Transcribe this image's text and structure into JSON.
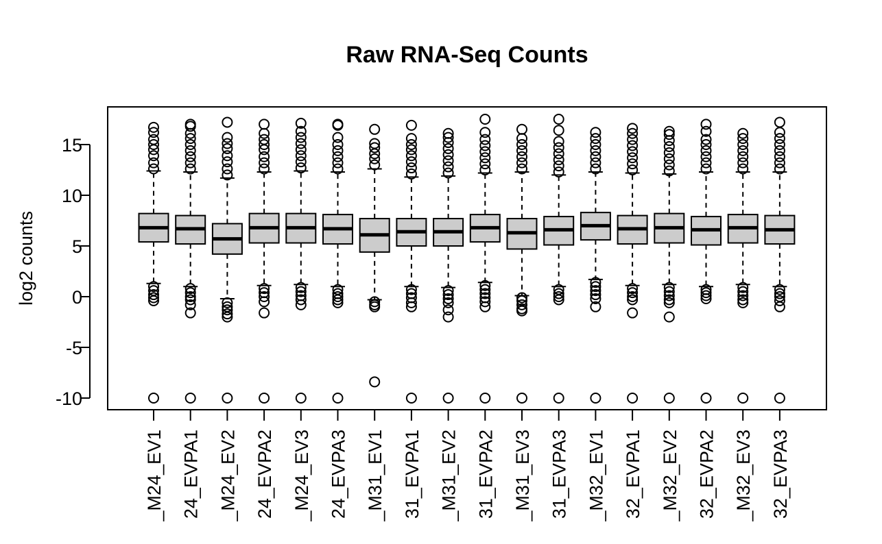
{
  "chart_data": {
    "type": "boxplot",
    "title": "Raw RNA-Seq Counts",
    "xlabel": "",
    "ylabel": "log2 counts",
    "ylim": [
      -11,
      18.5
    ],
    "yticks": [
      -10,
      -5,
      0,
      5,
      10,
      15
    ],
    "ytick_labels": [
      "-10",
      "-5",
      "0",
      "5",
      "10",
      "15"
    ],
    "grid": false,
    "legend": "none",
    "colors": {
      "box_fill": "#cccccc",
      "stroke": "#000000",
      "background": "#ffffff"
    },
    "categories": [
      "_M24_EV1",
      "24_EVPA1",
      "_M24_EV2",
      "24_EVPA2",
      "_M24_EV3",
      "24_EVPA3",
      "_M31_EV1",
      "31_EVPA1",
      "_M31_EV2",
      "31_EVPA2",
      "_M31_EV3",
      "31_EVPA3",
      "_M32_EV1",
      "32_EVPA1",
      "_M32_EV2",
      "32_EVPA2",
      "_M32_EV3",
      "32_EVPA3"
    ],
    "boxes": [
      {
        "q1": 5.4,
        "median": 6.8,
        "q3": 8.2,
        "whisker_low": 1.3,
        "whisker_high": 12.4,
        "outliers_high": [
          12.6,
          13.2,
          13.9,
          14.5,
          15.0,
          15.5,
          16.2,
          16.7
        ],
        "outliers_low": [
          1.0,
          0.6,
          0.2,
          -0.1,
          -0.4,
          -10
        ]
      },
      {
        "q1": 5.2,
        "median": 6.7,
        "q3": 8.0,
        "whisker_low": 1.0,
        "whisker_high": 12.3,
        "outliers_high": [
          12.6,
          13.2,
          13.8,
          14.4,
          15.0,
          15.6,
          16.1,
          16.8,
          17.0
        ],
        "outliers_low": [
          0.8,
          0.4,
          0.0,
          -0.3,
          -0.8,
          -1.6,
          -10
        ]
      },
      {
        "q1": 4.2,
        "median": 5.7,
        "q3": 7.2,
        "whisker_low": -0.2,
        "whisker_high": 11.7,
        "outliers_high": [
          12.0,
          12.6,
          13.3,
          13.9,
          14.6,
          15.1,
          15.7,
          17.2
        ],
        "outliers_low": [
          -0.6,
          -1.0,
          -1.3,
          -1.7,
          -2.0,
          -10
        ]
      },
      {
        "q1": 5.3,
        "median": 6.8,
        "q3": 8.2,
        "whisker_low": 1.1,
        "whisker_high": 12.3,
        "outliers_high": [
          12.6,
          13.2,
          13.8,
          14.5,
          15.0,
          15.5,
          16.1,
          17.0
        ],
        "outliers_low": [
          0.8,
          0.4,
          0.0,
          -0.5,
          -1.6,
          -10
        ]
      },
      {
        "q1": 5.3,
        "median": 6.8,
        "q3": 8.2,
        "whisker_low": 1.2,
        "whisker_high": 12.4,
        "outliers_high": [
          12.7,
          13.3,
          13.9,
          14.5,
          15.1,
          15.7,
          16.3,
          17.1
        ],
        "outliers_low": [
          0.9,
          0.5,
          0.1,
          -0.3,
          -0.8,
          -10
        ]
      },
      {
        "q1": 5.2,
        "median": 6.7,
        "q3": 8.1,
        "whisker_low": 1.0,
        "whisker_high": 12.3,
        "outliers_high": [
          12.6,
          13.2,
          13.8,
          14.4,
          15.0,
          15.7,
          16.9,
          17.0
        ],
        "outliers_low": [
          0.7,
          0.3,
          0.0,
          -0.3,
          -0.6,
          -10
        ]
      },
      {
        "q1": 4.4,
        "median": 6.1,
        "q3": 7.7,
        "whisker_low": -0.3,
        "whisker_high": 12.6,
        "outliers_high": [
          13.0,
          13.6,
          14.1,
          14.7,
          15.1,
          16.5
        ],
        "outliers_low": [
          -0.5,
          -0.8,
          -1.0,
          -8.4
        ]
      },
      {
        "q1": 5.0,
        "median": 6.4,
        "q3": 7.7,
        "whisker_low": 1.0,
        "whisker_high": 11.8,
        "outliers_high": [
          12.1,
          12.7,
          13.3,
          13.9,
          14.5,
          15.0,
          15.6,
          16.9
        ],
        "outliers_low": [
          0.7,
          0.3,
          -0.1,
          -0.6,
          -1.0,
          -10
        ]
      },
      {
        "q1": 5.0,
        "median": 6.4,
        "q3": 7.7,
        "whisker_low": 0.9,
        "whisker_high": 11.9,
        "outliers_high": [
          12.2,
          12.8,
          13.4,
          14.0,
          14.6,
          15.2,
          15.7,
          16.1
        ],
        "outliers_low": [
          0.6,
          0.2,
          -0.2,
          -0.6,
          -1.3,
          -2.0,
          -10
        ]
      },
      {
        "q1": 5.4,
        "median": 6.8,
        "q3": 8.1,
        "whisker_low": 1.4,
        "whisker_high": 12.2,
        "outliers_high": [
          12.5,
          13.1,
          13.7,
          14.3,
          14.9,
          15.5,
          16.2,
          17.5
        ],
        "outliers_low": [
          1.1,
          0.7,
          0.3,
          -0.1,
          -0.5,
          -1.0,
          -10
        ]
      },
      {
        "q1": 4.7,
        "median": 6.3,
        "q3": 7.7,
        "whisker_low": 0.1,
        "whisker_high": 12.3,
        "outliers_high": [
          12.6,
          13.2,
          13.8,
          14.4,
          15.0,
          15.6,
          16.5
        ],
        "outliers_low": [
          -0.1,
          -0.4,
          -0.8,
          -1.2,
          -1.4,
          -10
        ]
      },
      {
        "q1": 5.1,
        "median": 6.6,
        "q3": 7.9,
        "whisker_low": 1.0,
        "whisker_high": 12.0,
        "outliers_high": [
          12.3,
          12.9,
          13.5,
          14.1,
          14.7,
          15.3,
          16.4,
          17.5
        ],
        "outliers_low": [
          0.7,
          0.3,
          0.0,
          -0.3,
          -10
        ]
      },
      {
        "q1": 5.6,
        "median": 7.0,
        "q3": 8.3,
        "whisker_low": 1.7,
        "whisker_high": 12.3,
        "outliers_high": [
          12.6,
          13.2,
          13.8,
          14.4,
          15.0,
          15.6,
          16.2
        ],
        "outliers_low": [
          1.4,
          1.0,
          0.6,
          0.2,
          -0.2,
          -1.0,
          -10
        ]
      },
      {
        "q1": 5.2,
        "median": 6.7,
        "q3": 8.0,
        "whisker_low": 1.1,
        "whisker_high": 12.2,
        "outliers_high": [
          12.5,
          13.1,
          13.7,
          14.3,
          14.9,
          15.5,
          16.1,
          16.6
        ],
        "outliers_low": [
          0.8,
          0.4,
          0.0,
          -0.3,
          -1.6,
          -10
        ]
      },
      {
        "q1": 5.3,
        "median": 6.8,
        "q3": 8.2,
        "whisker_low": 1.2,
        "whisker_high": 12.1,
        "outliers_high": [
          12.4,
          13.0,
          13.6,
          14.2,
          14.8,
          15.4,
          16.0,
          16.3
        ],
        "outliers_low": [
          0.9,
          0.5,
          0.1,
          -0.3,
          -0.6,
          -2.0,
          -10
        ]
      },
      {
        "q1": 5.1,
        "median": 6.6,
        "q3": 7.9,
        "whisker_low": 1.0,
        "whisker_high": 12.3,
        "outliers_high": [
          12.6,
          13.2,
          13.8,
          14.4,
          15.0,
          15.5,
          16.3,
          17.0
        ],
        "outliers_low": [
          0.7,
          0.4,
          0.1,
          -0.2,
          -10
        ]
      },
      {
        "q1": 5.3,
        "median": 6.8,
        "q3": 8.1,
        "whisker_low": 1.2,
        "whisker_high": 12.3,
        "outliers_high": [
          12.6,
          13.2,
          13.8,
          14.4,
          15.0,
          15.6,
          16.1
        ],
        "outliers_low": [
          0.9,
          0.5,
          0.1,
          -0.3,
          -0.6,
          -10
        ]
      },
      {
        "q1": 5.2,
        "median": 6.6,
        "q3": 8.0,
        "whisker_low": 1.0,
        "whisker_high": 12.3,
        "outliers_high": [
          12.6,
          13.2,
          13.8,
          14.4,
          15.0,
          15.6,
          16.2,
          17.2
        ],
        "outliers_low": [
          0.7,
          0.3,
          0.0,
          -0.4,
          -1.0,
          -10
        ]
      }
    ]
  }
}
